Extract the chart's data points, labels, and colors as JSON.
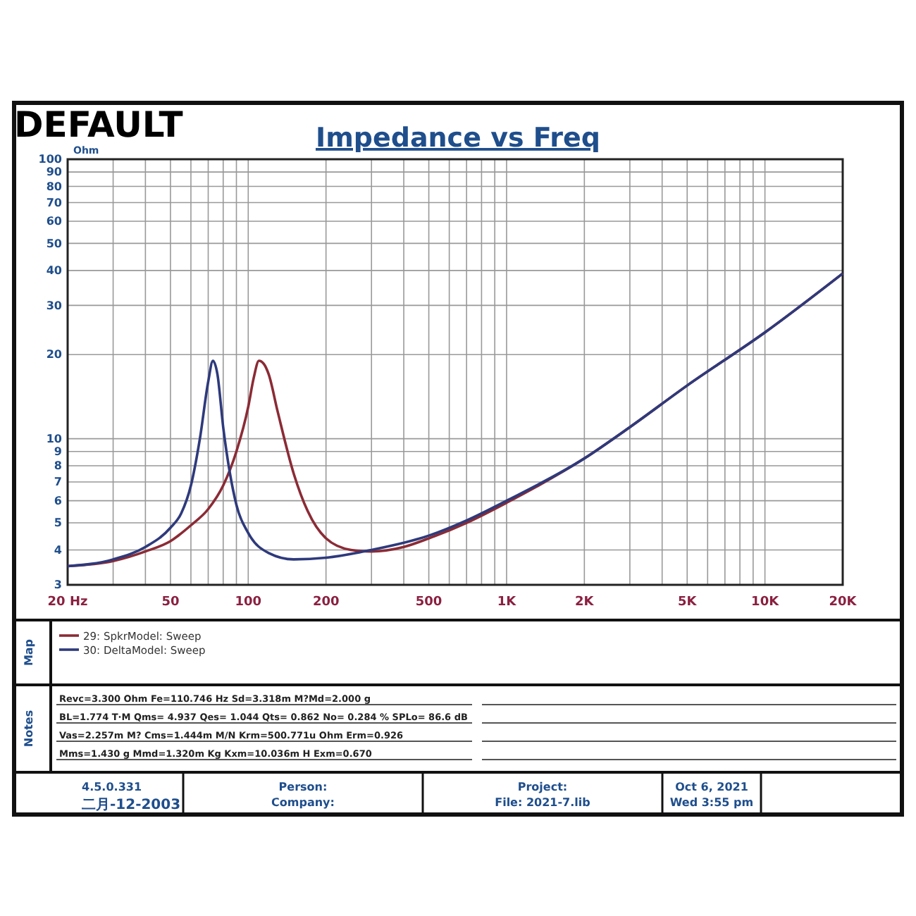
{
  "chart_data": {
    "type": "line",
    "title": "Impedance vs Freq",
    "ylabel": "Ohm",
    "log": "xy",
    "grid": true,
    "legend": "bottom",
    "line_style": "solid",
    "marker": "none",
    "xlim": [
      20,
      20000
    ],
    "ylim": [
      3,
      100
    ],
    "xticks": [
      {
        "value": 20,
        "label": "20 Hz"
      },
      {
        "value": 30,
        "label": null
      },
      {
        "value": 40,
        "label": null
      },
      50,
      {
        "value": 60,
        "label": null
      },
      {
        "value": 70,
        "label": null
      },
      {
        "value": 80,
        "label": null
      },
      {
        "value": 90,
        "label": null
      },
      100,
      200,
      {
        "value": 300,
        "label": null
      },
      {
        "value": 400,
        "label": null
      },
      500,
      {
        "value": 600,
        "label": null
      },
      {
        "value": 700,
        "label": null
      },
      {
        "value": 800,
        "label": null
      },
      {
        "value": 900,
        "label": null
      },
      {
        "value": 1000,
        "label": "1K"
      },
      {
        "value": 2000,
        "label": "2K"
      },
      {
        "value": 3000,
        "label": null
      },
      {
        "value": 4000,
        "label": null
      },
      {
        "value": 5000,
        "label": "5K"
      },
      {
        "value": 6000,
        "label": null
      },
      {
        "value": 7000,
        "label": null
      },
      {
        "value": 8000,
        "label": null
      },
      {
        "value": 9000,
        "label": null
      },
      {
        "value": 10000,
        "label": "10K"
      },
      {
        "value": 20000,
        "label": "20K"
      }
    ],
    "yticks": [
      3,
      4,
      5,
      6,
      7,
      8,
      9,
      10,
      20,
      30,
      40,
      50,
      60,
      70,
      80,
      90,
      100
    ],
    "series": [
      {
        "name": "29: SpkrModel: Sweep",
        "color": "#8b2b35",
        "x": [
          20,
          30,
          40,
          50,
          60,
          70,
          80,
          90,
          100,
          105,
          110,
          115,
          120,
          130,
          150,
          170,
          200,
          250,
          300,
          400,
          500,
          700,
          1000,
          2000,
          3000,
          5000,
          10000,
          20000
        ],
        "values": [
          3.5,
          3.65,
          3.95,
          4.3,
          4.9,
          5.6,
          6.8,
          9,
          13,
          16.5,
          19,
          18.5,
          17,
          12.5,
          7.5,
          5.5,
          4.4,
          4.0,
          3.95,
          4.1,
          4.4,
          5.0,
          5.9,
          8.5,
          11,
          15.5,
          24,
          39
        ]
      },
      {
        "name": "30: DeltaModel: Sweep",
        "color": "#2e3a7c",
        "x": [
          20,
          30,
          40,
          50,
          55,
          60,
          65,
          70,
          73,
          76,
          80,
          85,
          90,
          100,
          120,
          150,
          200,
          300,
          500,
          700,
          1000,
          2000,
          3000,
          5000,
          10000,
          20000
        ],
        "values": [
          3.5,
          3.7,
          4.1,
          4.8,
          5.4,
          6.8,
          10,
          16,
          19,
          17,
          11,
          7.5,
          5.8,
          4.6,
          3.9,
          3.7,
          3.75,
          4.0,
          4.5,
          5.1,
          6.0,
          8.5,
          11,
          15.5,
          24,
          39
        ]
      }
    ],
    "annotations": [
      "DEFAULT",
      "Map",
      "Notes",
      "Revc=3.300 Ohm  Fe=110.746 Hz  Sd=3.318m M?Md=2.000 g",
      "BL=1.774 T·M  Qms= 4.937  Qes= 1.044  Qts= 0.862  No= 0.284 %  SPLo= 86.6 dB",
      "Vas=2.257m M? Cms=1.444m M/N  Krm=500.771u Ohm  Erm=0.926",
      "Mms=1.430 g  Mmd=1.320m Kg  Kxm=10.036m H  Exm=0.670",
      "4.5.0.331",
      "二月-12-2003",
      "Person:",
      "Company:",
      "Project:",
      "File: 2021-7.lib",
      "Oct 6, 2021",
      "Wed 3:55 pm"
    ]
  }
}
